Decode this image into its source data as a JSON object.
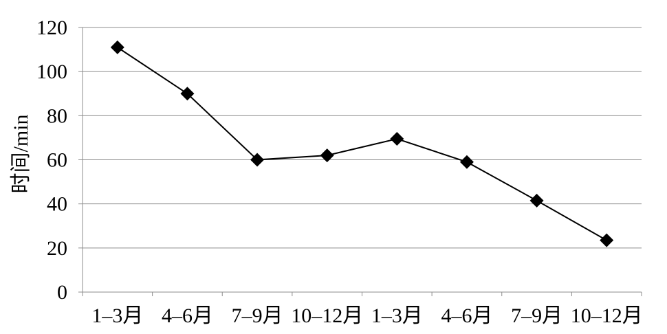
{
  "chart_data": {
    "type": "line",
    "title": "",
    "xlabel": "",
    "ylabel": "时间/min",
    "categories": [
      "1–3月",
      "4–6月",
      "7–9月",
      "10–12月",
      "1–3月",
      "4–6月",
      "7–9月",
      "10–12月"
    ],
    "yticks": [
      "0",
      "20",
      "40",
      "60",
      "80",
      "100",
      "120"
    ],
    "ylim": [
      0,
      120
    ],
    "grid": true,
    "legend": "none",
    "series": [
      {
        "values": [
          111,
          90,
          60,
          62,
          69.5,
          59,
          41.5,
          23.5
        ],
        "color": "#000000",
        "marker": "diamond"
      }
    ]
  }
}
